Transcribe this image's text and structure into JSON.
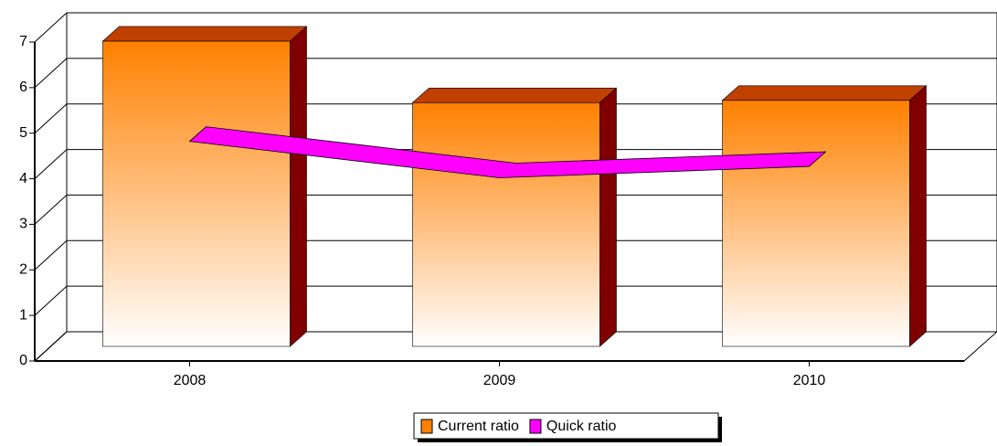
{
  "chart_data": {
    "type": "bar",
    "categories": [
      "2008",
      "2009",
      "2010"
    ],
    "series": [
      {
        "name": "Current ratio",
        "color": "#ff8000",
        "values": [
          6.7,
          5.35,
          5.4
        ]
      },
      {
        "name": "Quick ratio",
        "color": "#ff00ff",
        "type": "line",
        "values": [
          4.5,
          3.7,
          3.95
        ]
      }
    ],
    "ylim": [
      0,
      7
    ],
    "yticks": [
      0,
      1,
      2,
      3,
      4,
      5,
      6,
      7
    ],
    "grid": true,
    "legend": "bottom"
  }
}
